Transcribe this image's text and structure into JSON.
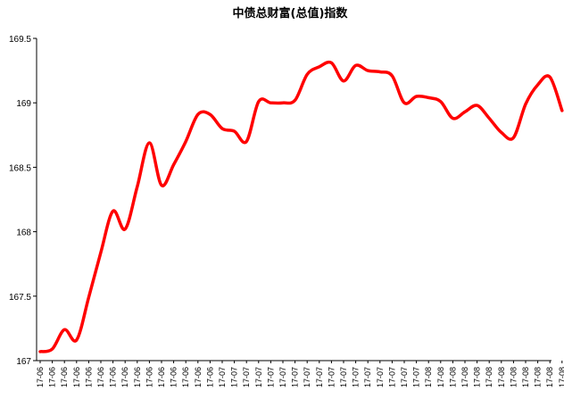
{
  "chart_data": {
    "type": "line",
    "title": "中债总财富(总值)指数",
    "xlabel": "",
    "ylabel": "",
    "ylim": [
      167,
      169.5
    ],
    "y_ticks": [
      "169.5",
      "169",
      "168.5",
      "168",
      "167.5",
      "167"
    ],
    "y_tick_values": [
      169.5,
      169,
      168.5,
      168,
      167.5,
      167
    ],
    "grid": false,
    "legend": "none",
    "line_color": "#ff0000",
    "categories": [
      "17-06",
      "17-06",
      "17-06",
      "17-06",
      "17-06",
      "17-06",
      "17-06",
      "17-06",
      "17-06",
      "17-06",
      "17-06",
      "17-06",
      "17-06",
      "17-06",
      "17-06",
      "17-07",
      "17-07",
      "17-07",
      "17-07",
      "17-07",
      "17-07",
      "17-07",
      "17-07",
      "17-07",
      "17-07",
      "17-07",
      "17-07",
      "17-07",
      "17-07",
      "17-07",
      "17-07",
      "17-07",
      "17-08",
      "17-08",
      "17-08",
      "17-08",
      "17-08",
      "17-08",
      "17-08",
      "17-08",
      "17-08",
      "17-08",
      "17-08",
      "17-08"
    ],
    "series": [
      {
        "values": [
          167.07,
          167.09,
          167.24,
          167.16,
          167.49,
          167.84,
          168.16,
          168.02,
          168.35,
          168.69,
          168.36,
          168.52,
          168.7,
          168.91,
          168.91,
          168.8,
          168.78,
          168.7,
          169.01,
          169.0,
          169.0,
          169.02,
          169.22,
          169.28,
          169.31,
          169.17,
          169.29,
          169.25,
          169.24,
          169.21,
          169.0,
          169.05,
          169.04,
          169.01,
          168.88,
          168.93,
          168.98,
          168.88,
          168.77,
          168.73,
          168.99,
          169.14,
          169.2,
          168.94
        ]
      }
    ]
  }
}
